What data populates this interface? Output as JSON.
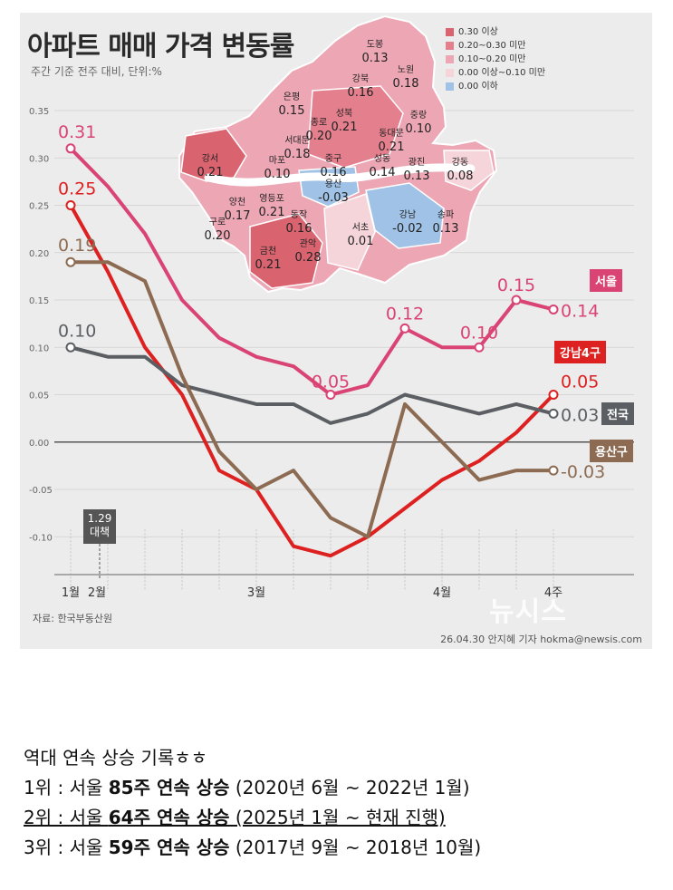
{
  "header": {
    "title": "아파트 매매 가격 변동률",
    "subtitle": "주간 기준 전주 대비, 단위:%"
  },
  "footer": {
    "source": "자료: 한국부동산원",
    "credit": "26.04.30 안지혜 기자 hokma@newsis.com",
    "watermark": "뉴시스"
  },
  "event": {
    "line1": "1.29",
    "line2": "대책"
  },
  "map_legend": [
    {
      "label": "0.30 이상",
      "color": "#d9646f"
    },
    {
      "label": "0.20~0.30 미만",
      "color": "#e47f8d"
    },
    {
      "label": "0.10~0.20 미만",
      "color": "#eda6b4"
    },
    {
      "label": "0.00 이상~0.10 미만",
      "color": "#f5d4da"
    },
    {
      "label": "0.00 이하",
      "color": "#9fc2e6"
    }
  ],
  "map_districts": [
    {
      "name": "도봉",
      "value": "0.13"
    },
    {
      "name": "노원",
      "value": "0.18"
    },
    {
      "name": "강북",
      "value": "0.16"
    },
    {
      "name": "은평",
      "value": "0.15"
    },
    {
      "name": "성북",
      "value": "0.21"
    },
    {
      "name": "중랑",
      "value": "0.10"
    },
    {
      "name": "종로",
      "value": "0.20"
    },
    {
      "name": "동대문",
      "value": "0.21"
    },
    {
      "name": "서대문",
      "value": "0.18"
    },
    {
      "name": "강서",
      "value": "0.21"
    },
    {
      "name": "마포",
      "value": "0.10"
    },
    {
      "name": "중구",
      "value": "0.16"
    },
    {
      "name": "성동",
      "value": "0.14"
    },
    {
      "name": "광진",
      "value": "0.13"
    },
    {
      "name": "강동",
      "value": "0.08"
    },
    {
      "name": "용산",
      "value": "-0.03"
    },
    {
      "name": "양천",
      "value": "0.17"
    },
    {
      "name": "영등포",
      "value": "0.21"
    },
    {
      "name": "구로",
      "value": "0.20"
    },
    {
      "name": "동작",
      "value": "0.16"
    },
    {
      "name": "서초",
      "value": "0.01"
    },
    {
      "name": "강남",
      "value": "-0.02"
    },
    {
      "name": "송파",
      "value": "0.13"
    },
    {
      "name": "금천",
      "value": "0.21"
    },
    {
      "name": "관악",
      "value": "0.28"
    }
  ],
  "chart_data": {
    "type": "line",
    "x_labels": [
      "1월",
      "2월",
      "3월",
      "4월",
      "4주"
    ],
    "ylim": [
      -0.15,
      0.35
    ],
    "yticks": [
      "0.35",
      "0.30",
      "0.25",
      "0.20",
      "0.15",
      "0.10",
      "0.05",
      "0.00",
      "-0.05",
      "-0.10"
    ],
    "series": [
      {
        "name": "서울",
        "color": "#d94475",
        "values": [
          0.31,
          0.27,
          0.22,
          0.15,
          0.11,
          0.09,
          0.08,
          0.05,
          0.06,
          0.12,
          0.1,
          0.1,
          0.15,
          0.14
        ],
        "labeled": {
          "0": "0.31",
          "7": "0.05",
          "9": "0.12",
          "11": "0.10",
          "12": "0.15",
          "13": "0.14"
        }
      },
      {
        "name": "강남4구",
        "color": "#dd2020",
        "values": [
          0.25,
          0.18,
          0.1,
          0.05,
          -0.03,
          -0.05,
          -0.11,
          -0.12,
          -0.1,
          -0.07,
          -0.04,
          -0.02,
          0.01,
          0.05
        ],
        "labeled": {
          "0": "0.25",
          "13": "0.05"
        }
      },
      {
        "name": "전국",
        "color": "#5b5f63",
        "values": [
          0.1,
          0.09,
          0.09,
          0.06,
          0.05,
          0.04,
          0.04,
          0.02,
          0.03,
          0.05,
          0.04,
          0.03,
          0.04,
          0.03
        ],
        "labeled": {
          "0": "0.10",
          "13": "0.03"
        }
      },
      {
        "name": "용산구",
        "color": "#8c6b52",
        "values": [
          0.19,
          0.19,
          0.17,
          0.07,
          -0.01,
          -0.05,
          -0.03,
          -0.08,
          -0.1,
          0.04,
          0.0,
          -0.04,
          -0.03,
          -0.03
        ],
        "labeled": {
          "0": "0.19",
          "13": "-0.03"
        }
      }
    ]
  },
  "notes": {
    "heading": "역대 연속 상승 기록ㅎㅎ",
    "r1_rank": "1위 : 서울 ",
    "r1_bold": "85주 연속 상승",
    "r1_period": " (2020년 6월 ~ 2022년 1월)",
    "r2_rank": "2위 : 서울 ",
    "r2_bold": "64주 연속 상승",
    "r2_period": " (2025년 1월 ~ 현재 진행)",
    "r3_rank": "3위 : 서울 ",
    "r3_bold": "59주 연속 상승",
    "r3_period": " (2017년 9월 ~ 2018년 10월)"
  }
}
